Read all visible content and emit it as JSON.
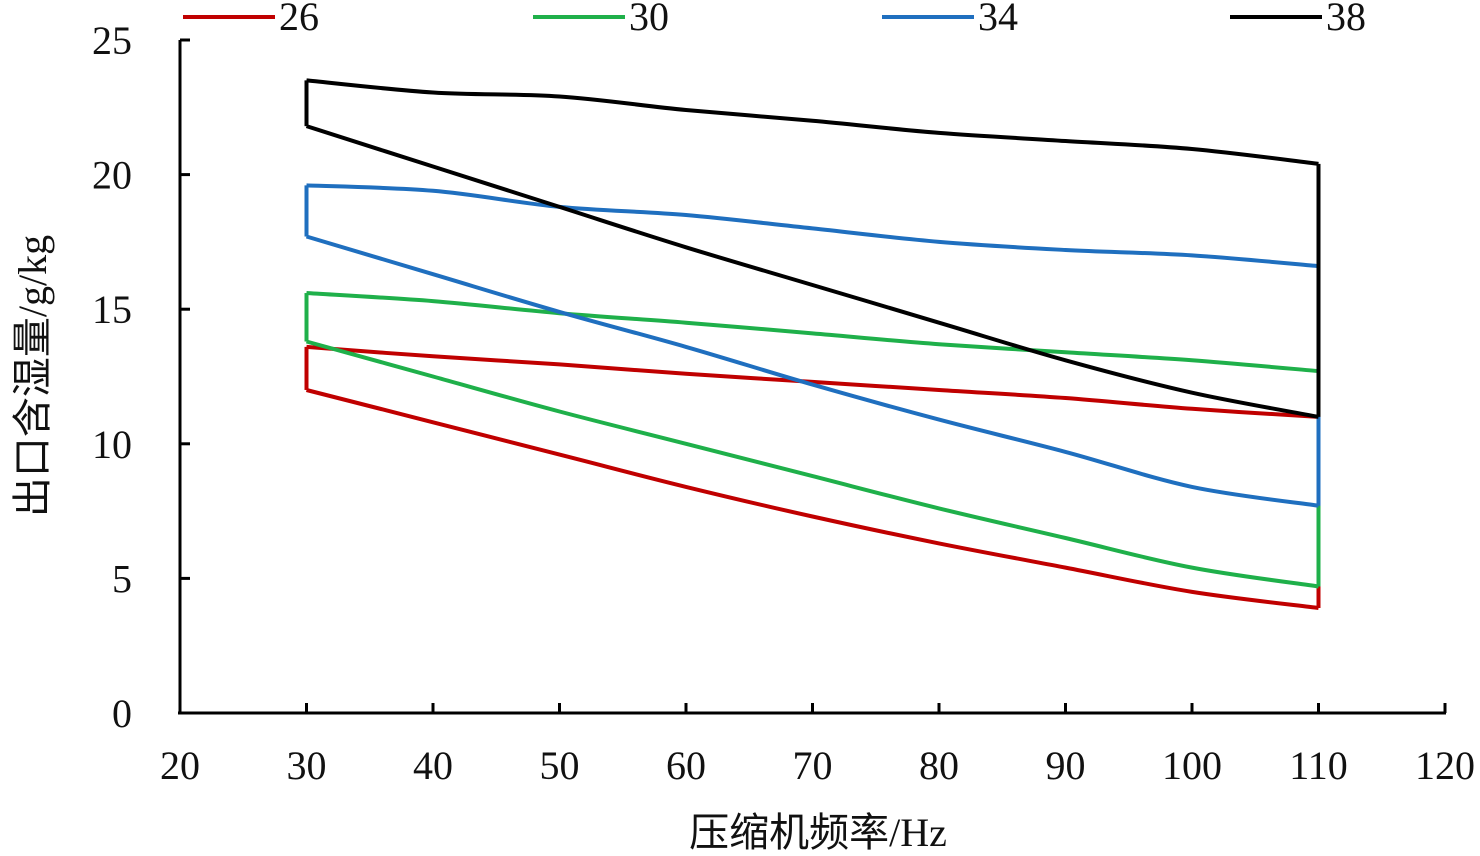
{
  "chart_data": {
    "type": "line",
    "title": "",
    "xlabel": "压缩机频率/Hz",
    "ylabel": "出口含湿量/g/kg",
    "xlim": [
      20,
      120
    ],
    "ylim": [
      0,
      25
    ],
    "x_ticks": [
      20,
      30,
      40,
      50,
      60,
      70,
      80,
      90,
      100,
      110,
      120
    ],
    "y_ticks": [
      0,
      5,
      10,
      15,
      20,
      25
    ],
    "grid": false,
    "legend_position": "top",
    "series": [
      {
        "name": "26",
        "color": "#c00000",
        "upper": {
          "x": [
            30,
            40,
            50,
            60,
            70,
            80,
            90,
            100,
            110
          ],
          "y": [
            13.6,
            13.25,
            12.95,
            12.6,
            12.3,
            12.0,
            11.7,
            11.3,
            11.0
          ]
        },
        "lower": {
          "x": [
            30,
            40,
            50,
            60,
            70,
            80,
            90,
            100,
            110
          ],
          "y": [
            12.0,
            10.8,
            9.6,
            8.4,
            7.3,
            6.3,
            5.4,
            4.5,
            3.9
          ]
        }
      },
      {
        "name": "30",
        "color": "#1fb04a",
        "upper": {
          "x": [
            30,
            40,
            50,
            60,
            70,
            80,
            90,
            100,
            110
          ],
          "y": [
            15.6,
            15.3,
            14.85,
            14.5,
            14.1,
            13.7,
            13.4,
            13.1,
            12.7
          ]
        },
        "lower": {
          "x": [
            30,
            40,
            50,
            60,
            70,
            80,
            90,
            100,
            110
          ],
          "y": [
            13.8,
            12.5,
            11.2,
            10.0,
            8.8,
            7.6,
            6.5,
            5.4,
            4.7
          ]
        }
      },
      {
        "name": "34",
        "color": "#1f6fbf",
        "upper": {
          "x": [
            30,
            40,
            50,
            60,
            70,
            80,
            90,
            100,
            110
          ],
          "y": [
            19.6,
            19.4,
            18.8,
            18.5,
            18.0,
            17.5,
            17.2,
            17.0,
            16.6
          ]
        },
        "lower": {
          "x": [
            30,
            40,
            50,
            60,
            70,
            80,
            90,
            100,
            110
          ],
          "y": [
            17.7,
            16.3,
            14.9,
            13.6,
            12.2,
            10.9,
            9.7,
            8.4,
            7.7
          ]
        }
      },
      {
        "name": "38",
        "color": "#000000",
        "upper": {
          "x": [
            30,
            40,
            50,
            60,
            70,
            80,
            90,
            100,
            110
          ],
          "y": [
            23.5,
            23.05,
            22.9,
            22.4,
            22.0,
            21.55,
            21.25,
            20.95,
            20.4
          ]
        },
        "lower": {
          "x": [
            30,
            40,
            50,
            60,
            70,
            80,
            90,
            100,
            110
          ],
          "y": [
            21.8,
            20.3,
            18.8,
            17.3,
            15.9,
            14.5,
            13.1,
            11.9,
            11.0
          ]
        }
      }
    ]
  }
}
